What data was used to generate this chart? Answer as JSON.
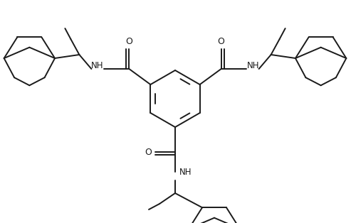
{
  "bg_color": "#ffffff",
  "line_color": "#1a1a1a",
  "line_width": 1.4,
  "figsize": [
    4.93,
    3.14
  ],
  "dpi": 100,
  "xlim": [
    0,
    493
  ],
  "ylim": [
    0,
    314
  ]
}
